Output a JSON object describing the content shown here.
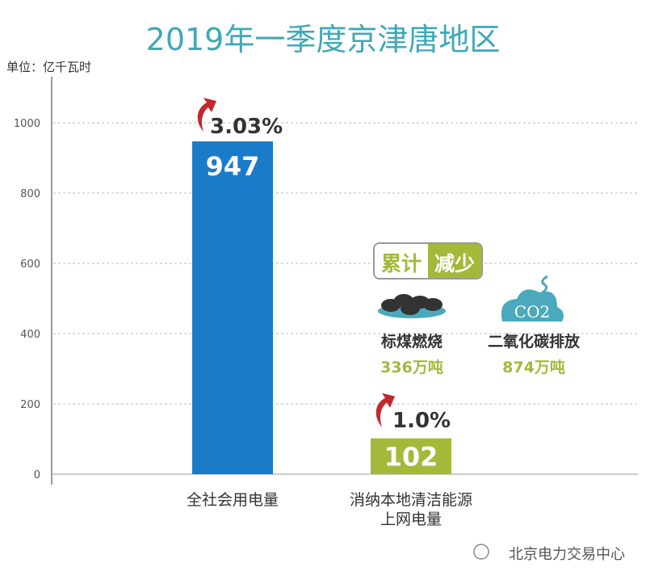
{
  "chart_data": {
    "type": "bar",
    "title": "2019年一季度京津唐地区",
    "ylabel": "单位：亿千瓦时",
    "ylim": [
      0,
      1000
    ],
    "yticks": [
      0,
      200,
      400,
      600,
      800,
      1000
    ],
    "grid": true,
    "categories": [
      "全社会用电量",
      "消纳本地清洁能源上网电量"
    ],
    "category_lines": [
      [
        "全社会用电量"
      ],
      [
        "消纳本地清洁能源",
        "上网电量"
      ]
    ],
    "values": [
      947,
      102
    ],
    "value_labels": [
      "947",
      "102"
    ],
    "growth_labels": [
      "3.03%",
      "1.0%"
    ],
    "colors": [
      "#1a7bc9",
      "#a5b83a"
    ]
  },
  "reduction": {
    "badge_left": "累计",
    "badge_right": "减少",
    "items": [
      {
        "name": "标煤燃烧",
        "amount": "336万吨",
        "icon": "coal-icon"
      },
      {
        "name": "二氧化碳排放",
        "amount": "874万吨",
        "icon": "co2-cloud-icon",
        "icon_text": "CO2"
      }
    ]
  },
  "watermark": "北京电力交易中心",
  "colors": {
    "title": "#3fa8b8",
    "arrow": "#c0282d",
    "green": "#a5b83a",
    "blue": "#1a7bc9"
  }
}
